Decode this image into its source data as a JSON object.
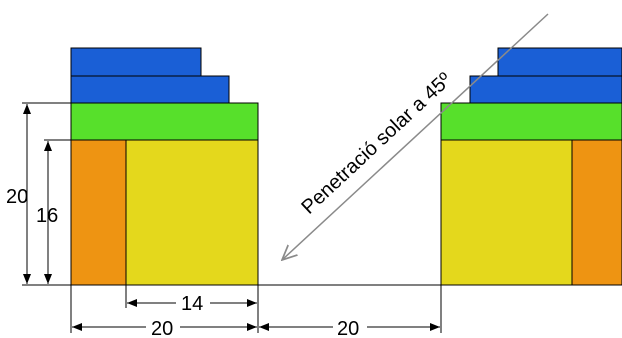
{
  "colors": {
    "blue": "#1a5fd6",
    "green": "#57e02b",
    "yellow": "#e4d81c",
    "orange": "#ee9412",
    "line": "#000000",
    "ray": "#8a8a8a"
  },
  "dimensions": {
    "height_total": "20",
    "height_inner": "16",
    "width_yellow": "14",
    "width_left": "20",
    "width_gap": "20"
  },
  "ray": {
    "label": "Penetració solar a 45º"
  }
}
